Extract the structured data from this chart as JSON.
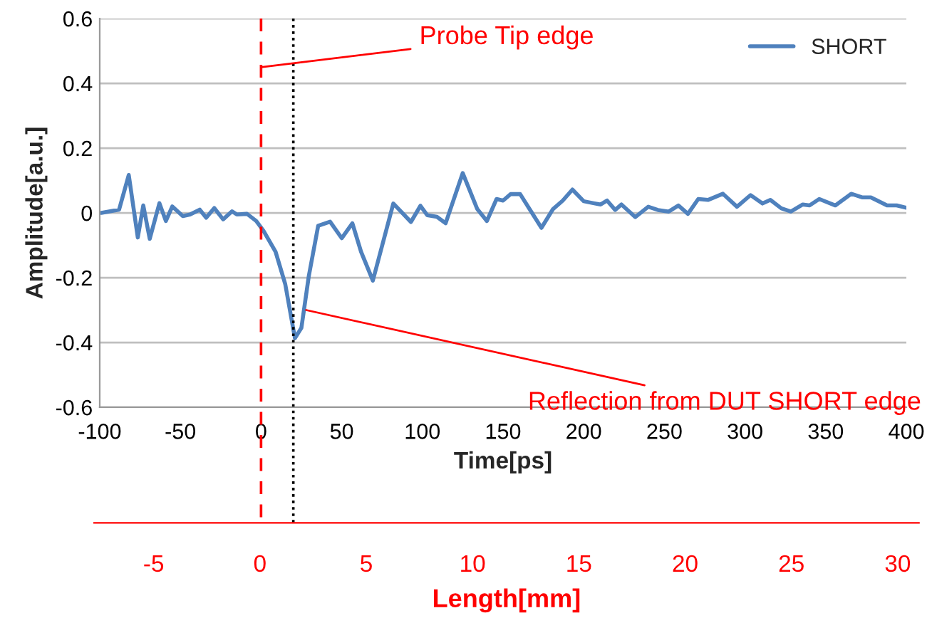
{
  "chart_data": {
    "type": "line",
    "xlabel": "Time[ps]",
    "ylabel": "Amplitude[a.u.]",
    "x2label": "Length[mm]",
    "xlim": [
      -100,
      400
    ],
    "xticks": [
      -100,
      -50,
      0,
      50,
      100,
      150,
      200,
      250,
      300,
      350,
      400
    ],
    "ylim": [
      -0.6,
      0.6
    ],
    "yticks": [
      -0.6,
      -0.4,
      -0.2,
      0,
      0.2,
      0.4,
      0.6
    ],
    "x2lim": [
      -7.8,
      31
    ],
    "x2ticks": [
      -5,
      0,
      5,
      10,
      15,
      20,
      25,
      30
    ],
    "grid": "y",
    "legend": "top right",
    "marker": "none",
    "line_style": "solid",
    "series": [
      {
        "name": "SHORT",
        "color": "#4f81bd",
        "x": [
          -99,
          -88,
          -82,
          -76.4,
          -73,
          -69,
          -63,
          -59,
          -55,
          -48.5,
          -44,
          -38,
          -34,
          -29,
          -23.5,
          -18,
          -15,
          -8.7,
          -3,
          1.5,
          9,
          15,
          21,
          25,
          29.6,
          35.4,
          42.8,
          50,
          56.6,
          62,
          69.3,
          82,
          92.9,
          98.8,
          103,
          109,
          114.4,
          125,
          134,
          140,
          146,
          150,
          154.7,
          160.6,
          166.4,
          173.8,
          181,
          187,
          193,
          200,
          206,
          210.5,
          214.5,
          219.5,
          223.4,
          232,
          240,
          246,
          252.7,
          258.7,
          264.6,
          271,
          277,
          286.3,
          295,
          303.4,
          310.8,
          315.7,
          322.5,
          328.4,
          335.8,
          340,
          346,
          356,
          365.8,
          372.5,
          378,
          384,
          388,
          394,
          400
        ],
        "values": [
          0,
          0.01,
          0.117,
          -0.076,
          0.023,
          -0.08,
          0.03,
          -0.025,
          0.02,
          -0.01,
          -0.005,
          0.01,
          -0.015,
          0.015,
          -0.02,
          0.005,
          -0.005,
          -0.003,
          -0.025,
          -0.055,
          -0.12,
          -0.22,
          -0.387,
          -0.355,
          -0.195,
          -0.04,
          -0.027,
          -0.078,
          -0.032,
          -0.12,
          -0.209,
          0.029,
          -0.028,
          0.022,
          -0.007,
          -0.012,
          -0.032,
          0.123,
          0.012,
          -0.025,
          0.043,
          0.038,
          0.058,
          0.058,
          0.012,
          -0.046,
          0.012,
          0.038,
          0.072,
          0.036,
          0.03,
          0.026,
          0.038,
          0.009,
          0.026,
          -0.013,
          0.019,
          0.009,
          0.004,
          0.023,
          -0.003,
          0.043,
          0.04,
          0.059,
          0.019,
          0.055,
          0.029,
          0.04,
          0.014,
          0.004,
          0.026,
          0.023,
          0.043,
          0.023,
          0.059,
          0.048,
          0.048,
          0.033,
          0.023,
          0.023,
          0.016
        ]
      }
    ],
    "ref_lines": [
      {
        "axis": "x",
        "value": 0,
        "label": null,
        "color": "#ff0000",
        "line_style": "dashed"
      },
      {
        "axis": "x",
        "value": 20,
        "label": null,
        "color": "#000000",
        "line_style": "dotted"
      }
    ],
    "annotations": [
      {
        "text": "Probe Tip edge",
        "x": 0,
        "y": 0.45
      },
      {
        "text": "Reflection from DUT SHORT edge",
        "x": 28,
        "y": -0.3
      }
    ]
  }
}
